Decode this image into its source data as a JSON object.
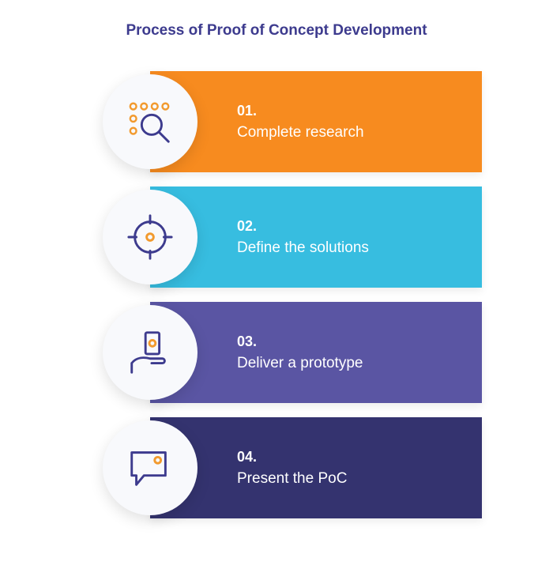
{
  "type": "infographic",
  "background_color": "#ffffff",
  "title": {
    "text": "Process of Proof of Concept Development",
    "color": "#3d3b8e",
    "fontsize": 19
  },
  "circle": {
    "bg": "#f8f9fc",
    "diameter": 120
  },
  "icon_colors": {
    "stroke": "#3d3b8e",
    "accent": "#f29a2e"
  },
  "steps": [
    {
      "number": "01.",
      "label": "Complete research",
      "bar_color": "#f78b1f",
      "icon": "research"
    },
    {
      "number": "02.",
      "label": "Define the solutions",
      "bar_color": "#37bde0",
      "icon": "target"
    },
    {
      "number": "03.",
      "label": "Deliver a prototype",
      "bar_color": "#5a55a3",
      "icon": "deliver"
    },
    {
      "number": "04.",
      "label": "Present the PoC",
      "bar_color": "#34336f",
      "icon": "present"
    }
  ]
}
